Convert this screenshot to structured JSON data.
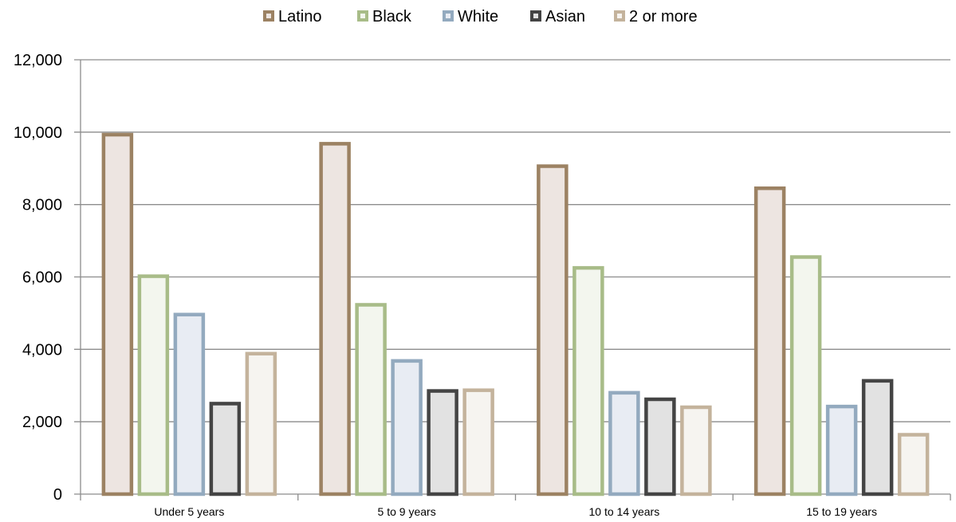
{
  "chart_data": {
    "type": "bar",
    "categories": [
      "Under 5 years",
      "5 to 9 years",
      "10 to 14 years",
      "15 to 19 years"
    ],
    "series": [
      {
        "name": "Latino",
        "values": [
          9930,
          9680,
          9060,
          8450
        ],
        "stroke": "#9c8263",
        "fill": "#ede5e1"
      },
      {
        "name": "Black",
        "values": [
          6020,
          5230,
          6250,
          6550
        ],
        "stroke": "#a8bc88",
        "fill": "#f3f6ee"
      },
      {
        "name": "White",
        "values": [
          4960,
          3680,
          2800,
          2420
        ],
        "stroke": "#93aabf",
        "fill": "#e8ecf3"
      },
      {
        "name": "Asian",
        "values": [
          2500,
          2850,
          2620,
          3130
        ],
        "stroke": "#444444",
        "fill": "#e2e2e2"
      },
      {
        "name": "2 or more",
        "values": [
          3880,
          2870,
          2400,
          1640
        ],
        "stroke": "#c4b39c",
        "fill": "#f6f4f0"
      }
    ],
    "yticks": [
      "0",
      "2,000",
      "4,000",
      "6,000",
      "8,000",
      "10,000",
      "12,000"
    ],
    "ylim": [
      0,
      12000
    ],
    "grid": true,
    "legend_position": "top"
  }
}
